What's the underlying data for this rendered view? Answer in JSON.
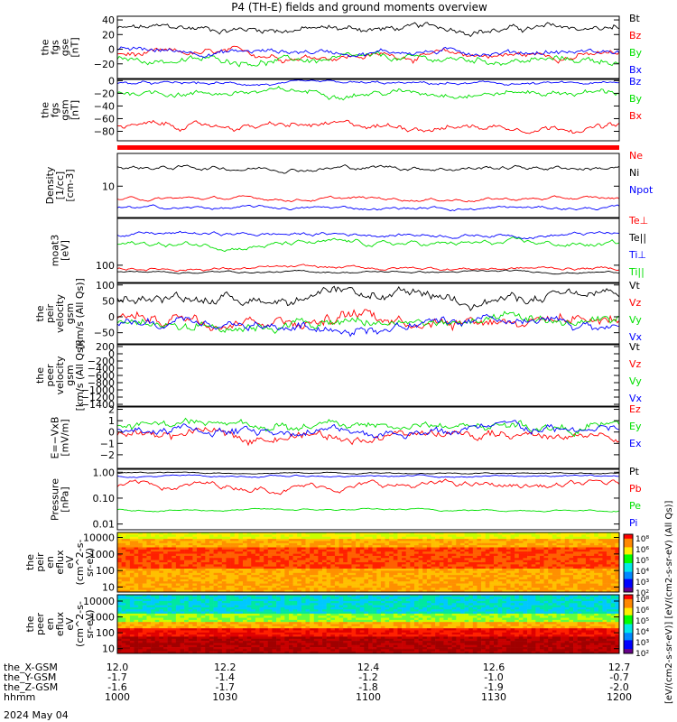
{
  "title": "P4 (TH-E) fields and ground moments overview",
  "date_label": "2024 May 04",
  "colors": {
    "black": "#000000",
    "red": "#ff0000",
    "green": "#00e000",
    "blue": "#0000ff"
  },
  "x_rows": {
    "labels": [
      "the_X-GSM",
      "the_Y-GSM",
      "the_Z-GSM",
      "hhmm"
    ],
    "ticks": [
      [
        "12.0",
        "12.2",
        "12.4",
        "12.6",
        "12.7"
      ],
      [
        "-1.7",
        "-1.4",
        "-1.2",
        "-1.0",
        "-0.7"
      ],
      [
        "-1.6",
        "-1.7",
        "-1.8",
        "-1.9",
        "-2.0"
      ],
      [
        "1000",
        "1030",
        "1100",
        "1130",
        "1200"
      ]
    ]
  },
  "colorbar": {
    "ticks": [
      "10⁸",
      "10⁶",
      "10⁵",
      "10⁴",
      "10³",
      "10²"
    ],
    "label": "[eV/(cm2-s-sr-eV)] [eV/(cm2-s-sr-eV) (All Qs)]"
  },
  "chart_data": [
    {
      "type": "line",
      "ylabel": [
        "the",
        "fgs",
        "gse",
        "[nT]"
      ],
      "ylim": [
        -40,
        45
      ],
      "tick_labels": [
        "40",
        "20",
        "0",
        "−20"
      ],
      "tick_values": [
        40,
        20,
        0,
        -20
      ],
      "series": [
        {
          "name": "Bt",
          "color": "#000000",
          "mean": 28,
          "amp": 6
        },
        {
          "name": "Bz",
          "color": "#ff0000",
          "mean": -8,
          "amp": 6
        },
        {
          "name": "By",
          "color": "#00e000",
          "mean": -15,
          "amp": 6
        },
        {
          "name": "Bx",
          "color": "#0000ff",
          "mean": -3,
          "amp": 5
        }
      ]
    },
    {
      "type": "line",
      "ylabel": [
        "the",
        "fgs",
        "gsm",
        "[nT]"
      ],
      "ylim": [
        -95,
        2
      ],
      "tick_labels": [
        "0",
        "−20",
        "−40",
        "−60",
        "−80"
      ],
      "tick_values": [
        0,
        -20,
        -40,
        -60,
        -80
      ],
      "series": [
        {
          "name": "Bz",
          "color": "#0000ff",
          "mean": -5,
          "amp": 3
        },
        {
          "name": "By",
          "color": "#00e000",
          "mean": -18,
          "amp": 6
        },
        {
          "name": "Bx",
          "color": "#ff0000",
          "mean": -72,
          "amp": 6
        }
      ]
    },
    {
      "type": "line",
      "ylabel": [
        "Density",
        "[1/cc]",
        "[cm-3]"
      ],
      "ylim": [
        1.8,
        60
      ],
      "log": true,
      "tick_labels": [
        "10"
      ],
      "tick_values": [
        10
      ],
      "series": [
        {
          "name": "Ne",
          "color": "#ff0000",
          "mean": 5,
          "amp": 0.5
        },
        {
          "name": "Ni",
          "color": "#000000",
          "mean": 28,
          "amp": 4
        },
        {
          "name": "Npot",
          "color": "#0000ff",
          "mean": 3,
          "amp": 0.3
        }
      ]
    },
    {
      "type": "line",
      "ylabel": [
        "moat3",
        "[eV]"
      ],
      "ylim": [
        40,
        1200
      ],
      "log": true,
      "tick_labels": [
        "100"
      ],
      "tick_values": [
        100
      ],
      "series": [
        {
          "name": "Te⊥",
          "color": "#ff0000",
          "mean": 85,
          "amp": 8
        },
        {
          "name": "Te||",
          "color": "#000000",
          "mean": 70,
          "amp": 4
        },
        {
          "name": "Ti⊥",
          "color": "#0000ff",
          "mean": 520,
          "amp": 60
        },
        {
          "name": "Ti||",
          "color": "#00e000",
          "mean": 300,
          "amp": 50
        }
      ]
    },
    {
      "type": "line",
      "ylabel": [
        "the",
        "peir",
        "velocity",
        "gsm",
        "[km/s (All Qs)]"
      ],
      "ylim": [
        -85,
        105
      ],
      "tick_labels": [
        "100",
        "50",
        "0",
        "−50"
      ],
      "tick_values": [
        100,
        50,
        0,
        -50
      ],
      "series": [
        {
          "name": "Vt",
          "color": "#000000",
          "mean": 60,
          "amp": 20
        },
        {
          "name": "Vz",
          "color": "#ff0000",
          "mean": 0,
          "amp": 25
        },
        {
          "name": "Vy",
          "color": "#00e000",
          "mean": -20,
          "amp": 20
        },
        {
          "name": "Vx",
          "color": "#0000ff",
          "mean": -30,
          "amp": 20
        }
      ]
    },
    {
      "type": "line",
      "ylabel": [
        "the",
        "peer",
        "velocity",
        "gsm",
        "[km/s (All Qs)]"
      ],
      "ylim": [
        -1450,
        250
      ],
      "tick_labels": [
        "200",
        "0",
        "−200",
        "−400",
        "−600",
        "−800",
        "−1000",
        "−1200",
        "−1400"
      ],
      "tick_values": [
        200,
        0,
        -200,
        -400,
        -600,
        -800,
        -1000,
        -1200,
        -1400
      ],
      "series": [
        {
          "name": "Vt",
          "color": "#000000"
        },
        {
          "name": "Vz",
          "color": "#ff0000"
        },
        {
          "name": "Vy",
          "color": "#00e000"
        },
        {
          "name": "Vx",
          "color": "#0000ff"
        }
      ]
    },
    {
      "type": "line",
      "ylabel": [
        "E=−VxB",
        "[mV/m]"
      ],
      "ylim": [
        -3.2,
        2.2
      ],
      "tick_labels": [
        "2",
        "1",
        "0",
        "−1",
        "−2"
      ],
      "tick_values": [
        2,
        1,
        0,
        -1,
        -2
      ],
      "series": [
        {
          "name": "Ez",
          "color": "#ff0000",
          "mean": -0.3,
          "amp": 0.5
        },
        {
          "name": "Ey",
          "color": "#00e000",
          "mean": 0.5,
          "amp": 0.5
        },
        {
          "name": "Ex",
          "color": "#0000ff",
          "mean": 0.1,
          "amp": 0.5
        }
      ]
    },
    {
      "type": "line",
      "ylabel": [
        "Pressure",
        "[nPa]"
      ],
      "ylim": [
        0.006,
        1.3
      ],
      "log": true,
      "tick_labels": [
        "1.00",
        "0.10",
        "0.01"
      ],
      "tick_values": [
        1,
        0.1,
        0.01
      ],
      "series": [
        {
          "name": "Pt",
          "color": "#000000",
          "mean": 0.95,
          "amp": 0.06
        },
        {
          "name": "Pb",
          "color": "#ff0000",
          "mean": 0.3,
          "amp": 0.1
        },
        {
          "name": "Pe",
          "color": "#00e000",
          "mean": 0.035,
          "amp": 0.003
        },
        {
          "name": "Pi",
          "color": "#0000ff",
          "mean": 0.7,
          "amp": 0.06
        }
      ]
    },
    {
      "type": "heatmap",
      "ylabel": [
        "the",
        "peir",
        "en",
        "eflux",
        "eV",
        "(cm^2-s-",
        "sr-eV)"
      ],
      "ylim": [
        5,
        20000
      ],
      "log": true,
      "tick_labels": [
        "10000",
        "1000",
        "100",
        "10"
      ],
      "tick_values": [
        10000,
        1000,
        100,
        10
      ]
    },
    {
      "type": "heatmap",
      "ylabel": [
        "the",
        "peer",
        "en",
        "eflux",
        "eV",
        "(cm^2-s-",
        "sr-eV)"
      ],
      "ylim": [
        5,
        25000
      ],
      "log": true,
      "tick_labels": [
        "10000",
        "1000",
        "100",
        "10"
      ],
      "tick_values": [
        10000,
        1000,
        100,
        10
      ]
    }
  ]
}
